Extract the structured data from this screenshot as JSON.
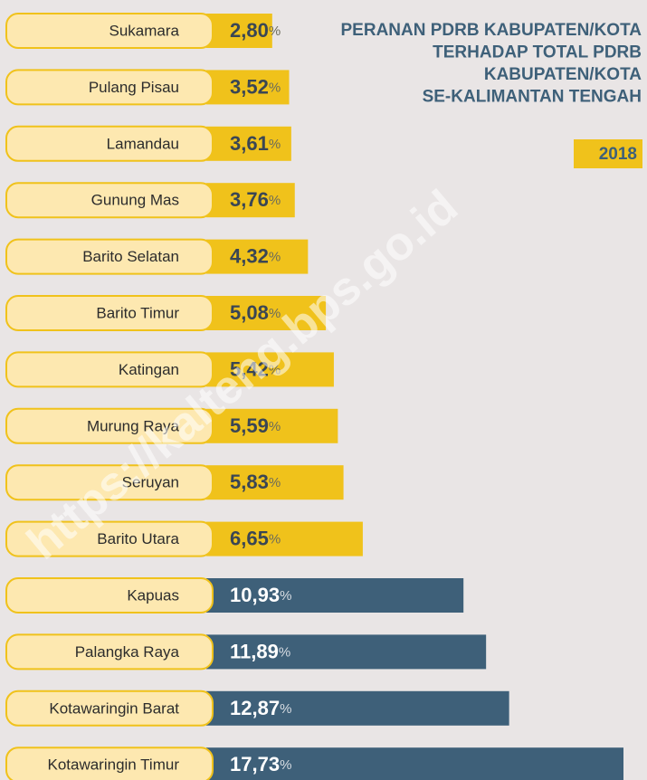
{
  "chart_data": {
    "type": "bar",
    "title": [
      "PERANAN PDRB KABUPATEN/KOTA",
      "TERHADAP TOTAL PDRB",
      "KABUPATEN/KOTA",
      "SE-KALIMANTAN TENGAH"
    ],
    "year": "2018",
    "unit": "%",
    "watermark": "https://kalteng.bps.go.id",
    "categories": [
      "Sukamara",
      "Pulang Pisau",
      "Lamandau",
      "Gunung Mas",
      "Barito Selatan",
      "Barito Timur",
      "Katingan",
      "Murung Raya",
      "Seruyan",
      "Barito Utara",
      "Kapuas",
      "Palangka Raya",
      "Kotawaringin Barat",
      "Kotawaringin Timur"
    ],
    "values": [
      2.8,
      3.52,
      3.61,
      3.76,
      4.32,
      5.08,
      5.42,
      5.59,
      5.83,
      6.65,
      10.93,
      11.89,
      12.87,
      17.73
    ],
    "value_labels": [
      "2,80",
      "3,52",
      "3,61",
      "3,76",
      "4,32",
      "5,08",
      "5,42",
      "5,59",
      "5,83",
      "6,65",
      "10,93",
      "11,89",
      "12,87",
      "17,73"
    ],
    "colors": [
      "#f0c21b",
      "#f0c21b",
      "#f0c21b",
      "#f0c21b",
      "#f0c21b",
      "#f0c21b",
      "#f0c21b",
      "#f0c21b",
      "#f0c21b",
      "#f0c21b",
      "#3e6079",
      "#3e6079",
      "#3e6079",
      "#3e6079"
    ]
  }
}
